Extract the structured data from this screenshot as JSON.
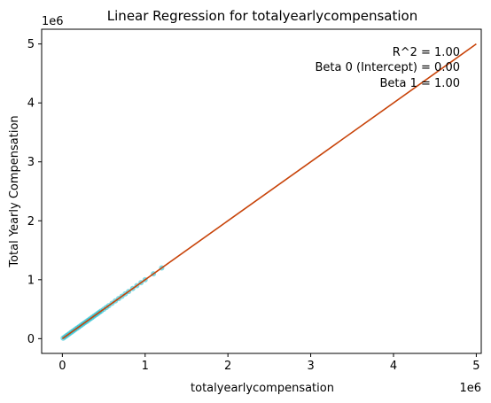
{
  "chart_data": {
    "type": "scatter",
    "title": "Linear Regression for totalyearlycompensation",
    "xlabel": "totalyearlycompensation",
    "ylabel": "Total Yearly Compensation",
    "x_offset_label": "1e6",
    "y_offset_label": "1e6",
    "xlim": [
      -0.25,
      5.06
    ],
    "ylim": [
      -0.25,
      5.25
    ],
    "xticks": [
      0,
      1,
      2,
      3,
      4,
      5
    ],
    "yticks": [
      0,
      1,
      2,
      3,
      4,
      5
    ],
    "xtick_labels": [
      "0",
      "1",
      "2",
      "3",
      "4",
      "5"
    ],
    "ytick_labels": [
      "0",
      "1",
      "2",
      "3",
      "4",
      "5"
    ],
    "grid": false,
    "annotations": [
      "R^2 = 1.00",
      "Beta 0 (Intercept) = 0.00",
      "Beta 1 = 1.00"
    ],
    "annotation_placement": "top-right",
    "series": [
      {
        "kind": "scatter",
        "color": "#17becf",
        "points": [
          [
            0.01,
            0.01
          ],
          [
            0.03,
            0.03
          ],
          [
            0.05,
            0.05
          ],
          [
            0.07,
            0.07
          ],
          [
            0.09,
            0.09
          ],
          [
            0.11,
            0.11
          ],
          [
            0.13,
            0.13
          ],
          [
            0.15,
            0.15
          ],
          [
            0.17,
            0.17
          ],
          [
            0.19,
            0.19
          ],
          [
            0.21,
            0.21
          ],
          [
            0.23,
            0.23
          ],
          [
            0.25,
            0.25
          ],
          [
            0.27,
            0.27
          ],
          [
            0.29,
            0.29
          ],
          [
            0.31,
            0.31
          ],
          [
            0.33,
            0.33
          ],
          [
            0.35,
            0.35
          ],
          [
            0.37,
            0.37
          ],
          [
            0.39,
            0.39
          ],
          [
            0.41,
            0.41
          ],
          [
            0.43,
            0.43
          ],
          [
            0.45,
            0.45
          ],
          [
            0.47,
            0.47
          ],
          [
            0.5,
            0.5
          ],
          [
            0.53,
            0.53
          ],
          [
            0.56,
            0.56
          ],
          [
            0.6,
            0.6
          ],
          [
            0.64,
            0.64
          ],
          [
            0.68,
            0.68
          ],
          [
            0.72,
            0.72
          ],
          [
            0.76,
            0.76
          ],
          [
            0.8,
            0.8
          ],
          [
            0.85,
            0.85
          ],
          [
            0.9,
            0.9
          ],
          [
            0.95,
            0.95
          ],
          [
            1.0,
            1.0
          ],
          [
            1.1,
            1.1
          ],
          [
            1.2,
            1.2
          ]
        ]
      },
      {
        "kind": "line",
        "color": "#c8440a",
        "x": [
          0,
          5.0
        ],
        "y": [
          0,
          5.0
        ]
      }
    ]
  }
}
